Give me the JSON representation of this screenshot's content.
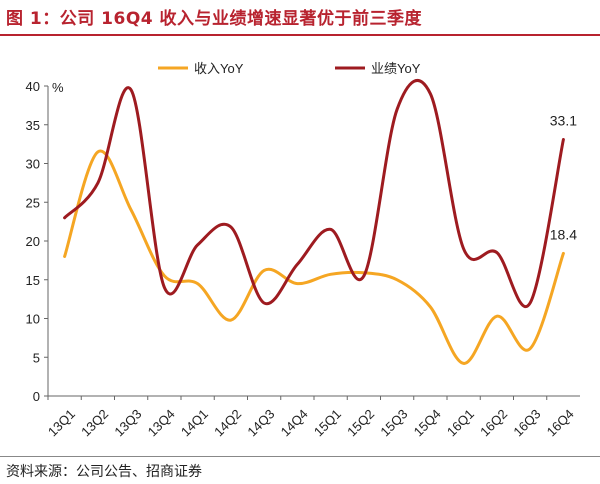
{
  "title": "图 1：公司 16Q4 收入与业绩增速显著优于前三季度",
  "source": "资料来源：公司公告、招商证券",
  "chart_data": {
    "type": "line",
    "categories": [
      "13Q1",
      "13Q2",
      "13Q3",
      "13Q4",
      "14Q1",
      "14Q2",
      "14Q3",
      "14Q4",
      "15Q1",
      "15Q2",
      "15Q3",
      "15Q4",
      "16Q1",
      "16Q2",
      "16Q3",
      "16Q4"
    ],
    "series": [
      {
        "name": "收入YoY",
        "color": "#f5a623",
        "values": [
          18.0,
          31.5,
          24.0,
          15.5,
          14.5,
          9.8,
          16.2,
          14.5,
          15.7,
          15.9,
          15.0,
          11.5,
          4.2,
          10.3,
          6.1,
          18.4
        ]
      },
      {
        "name": "业绩YoY",
        "color": "#9e1b20",
        "values": [
          23.0,
          27.5,
          39.5,
          14.0,
          19.5,
          21.8,
          12.0,
          17.0,
          21.5,
          15.5,
          37.0,
          39.0,
          19.0,
          18.5,
          12.0,
          33.1
        ]
      }
    ],
    "y_unit": "%",
    "ylim": [
      0,
      40
    ],
    "yticks": [
      0,
      5,
      10,
      15,
      20,
      25,
      30,
      35,
      40
    ],
    "grid": false,
    "legend_position": "top-center",
    "annotations": [
      {
        "series": 1,
        "index": 15,
        "text": "33.1"
      },
      {
        "series": 0,
        "index": 15,
        "text": "18.4"
      }
    ]
  }
}
